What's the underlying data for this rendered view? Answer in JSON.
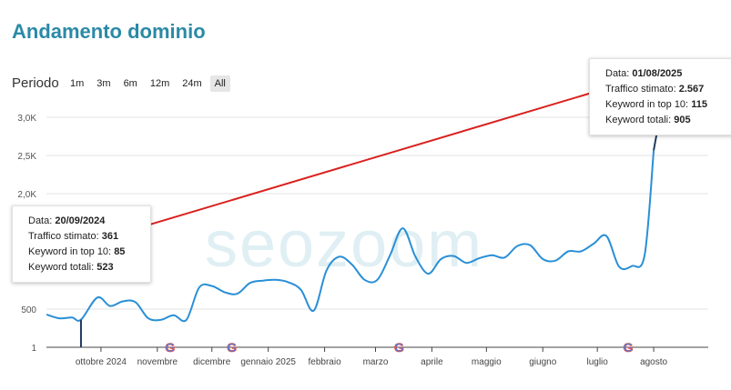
{
  "header": {
    "title": "Andamento dominio"
  },
  "period": {
    "label": "Periodo",
    "options": [
      "1m",
      "3m",
      "6m",
      "12m",
      "24m",
      "All"
    ],
    "active": "All"
  },
  "watermark": "seozoom",
  "tooltips": [
    {
      "date_label": "Data:",
      "date": "01/08/2025",
      "traffic_label": "Traffico stimato:",
      "traffic": "2.567",
      "top10_label": "Keyword in top 10:",
      "top10": "115",
      "total_label": "Keyword totali:",
      "total": "905"
    },
    {
      "date_label": "Data:",
      "date": "20/09/2024",
      "traffic_label": "Traffico stimato:",
      "traffic": "361",
      "top10_label": "Keyword in top 10:",
      "top10": "85",
      "total_label": "Keyword totali:",
      "total": "523"
    }
  ],
  "colors": {
    "line": "#2a8fd6",
    "arrow": "#d9221e",
    "title": "#2b8aa6",
    "grid": "#e3e3e3"
  },
  "chart_data": {
    "type": "line",
    "title": "",
    "xlabel": "",
    "ylabel": "",
    "y_scale": "custom (non-linear)",
    "y_ticks": [
      "1",
      "500",
      "2,0K",
      "2,5K",
      "3,0K"
    ],
    "x_ticks": [
      "ottobre 2024",
      "novembre",
      "dicembre",
      "gennaio 2025",
      "febbraio",
      "marzo",
      "aprile",
      "maggio",
      "giugno",
      "luglio",
      "agosto"
    ],
    "google_update_markers": [
      "novembre",
      "dicembre",
      "marzo",
      "luglio"
    ],
    "grid": "horizontal",
    "series": [
      {
        "name": "",
        "x": [
          "2024-09-01",
          "2024-09-08",
          "2024-09-15",
          "2024-09-20",
          "2024-09-29",
          "2024-10-06",
          "2024-10-13",
          "2024-10-20",
          "2024-10-27",
          "2024-11-03",
          "2024-11-10",
          "2024-11-17",
          "2024-11-24",
          "2024-12-01",
          "2024-12-08",
          "2024-12-15",
          "2024-12-22",
          "2024-12-29",
          "2025-01-05",
          "2025-01-12",
          "2025-01-19",
          "2025-01-26",
          "2025-02-02",
          "2025-02-09",
          "2025-02-16",
          "2025-02-23",
          "2025-03-02",
          "2025-03-09",
          "2025-03-16",
          "2025-03-23",
          "2025-03-30",
          "2025-04-06",
          "2025-04-13",
          "2025-04-20",
          "2025-04-27",
          "2025-05-04",
          "2025-05-11",
          "2025-05-18",
          "2025-05-25",
          "2025-06-01",
          "2025-06-08",
          "2025-06-15",
          "2025-06-22",
          "2025-06-29",
          "2025-07-06",
          "2025-07-13",
          "2025-07-20",
          "2025-07-27",
          "2025-08-01"
        ],
        "values": [
          430,
          380,
          390,
          361,
          650,
          540,
          600,
          590,
          380,
          360,
          420,
          360,
          780,
          800,
          720,
          700,
          840,
          870,
          880,
          850,
          750,
          480,
          1000,
          1180,
          1080,
          880,
          880,
          1200,
          1550,
          1180,
          960,
          1150,
          1190,
          1100,
          1160,
          1200,
          1170,
          1320,
          1330,
          1150,
          1130,
          1250,
          1250,
          1350,
          1450,
          1050,
          1060,
          1200,
          2567
        ]
      }
    ]
  }
}
